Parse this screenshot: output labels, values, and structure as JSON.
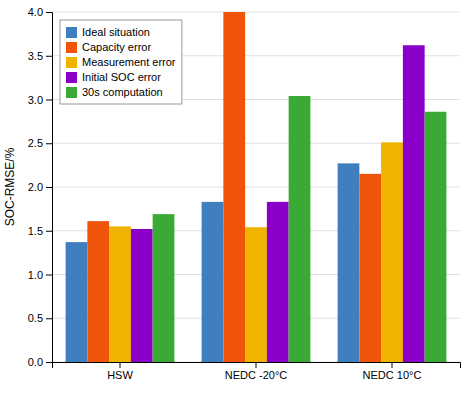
{
  "chart_data": {
    "type": "bar",
    "categories": [
      "HSW",
      "NEDC -20°C",
      "NEDC 10°C"
    ],
    "series": [
      {
        "name": "Ideal situation",
        "color": "#3f7fbf",
        "values": [
          1.37,
          1.83,
          2.27
        ]
      },
      {
        "name": "Capacity error",
        "color": "#f0530a",
        "values": [
          1.61,
          4.0,
          2.15
        ]
      },
      {
        "name": "Measurement error",
        "color": "#f0b400",
        "values": [
          1.55,
          1.54,
          2.51
        ]
      },
      {
        "name": "Initial SOC error",
        "color": "#8b00c8",
        "values": [
          1.52,
          1.83,
          3.62
        ]
      },
      {
        "name": "30s computation",
        "color": "#3aaa35",
        "values": [
          1.69,
          3.04,
          2.86
        ]
      }
    ],
    "ylabel": "SOC-RMSE/%",
    "ylim": [
      0,
      4.0
    ],
    "yticks": [
      {
        "value": 0,
        "label": "0.0"
      },
      0.5,
      {
        "value": 1.0,
        "label": "1.0"
      },
      1.5,
      {
        "value": 2.0,
        "label": "2.0"
      },
      2.5,
      {
        "value": 3.0,
        "label": "3.0"
      },
      3.5,
      {
        "value": 4.0,
        "label": "4.0"
      }
    ],
    "grid": true,
    "legend": "upper left"
  }
}
